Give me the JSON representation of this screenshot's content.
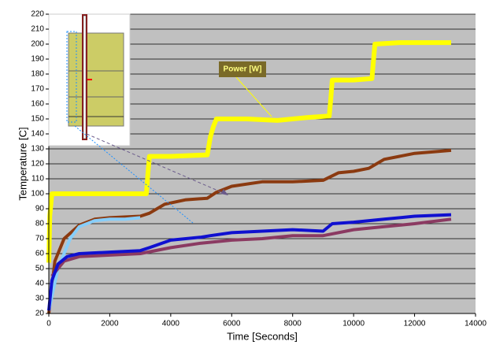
{
  "chart_data": {
    "type": "line",
    "x_label": "Time [Seconds]",
    "y_label": "Temperature [C]",
    "xlim": [
      0,
      14000
    ],
    "xticks": [
      0,
      2000,
      4000,
      6000,
      8000,
      10000,
      12000,
      14000
    ],
    "ylim": [
      20,
      220
    ],
    "yticks": [
      20,
      30,
      40,
      50,
      60,
      70,
      80,
      90,
      100,
      110,
      120,
      130,
      140,
      150,
      160,
      170,
      180,
      190,
      200,
      210,
      220
    ],
    "grid": true,
    "series": [
      {
        "name": "Power [W]",
        "color": "#ffff00",
        "x": [
          0,
          30,
          100,
          1000,
          2000,
          3200,
          3250,
          3300,
          4000,
          5200,
          5300,
          5400,
          5500,
          6500,
          7500,
          8500,
          9200,
          9250,
          9300,
          10000,
          10600,
          10700,
          11500,
          12500,
          13200
        ],
        "values": [
          54,
          85,
          100,
          100,
          100,
          100,
          113,
          125,
          125,
          126,
          138,
          145,
          150,
          150,
          149,
          151,
          152,
          163,
          176,
          176,
          177,
          200,
          201,
          201,
          201
        ]
      },
      {
        "color": "#8b3a10",
        "x": [
          0,
          200,
          500,
          1000,
          1500,
          2000,
          3000,
          3300,
          3800,
          4500,
          5200,
          5500,
          6000,
          7000,
          8000,
          9000,
          9500,
          10000,
          10500,
          11000,
          12000,
          13200
        ],
        "values": [
          20,
          55,
          70,
          79,
          83,
          84,
          85,
          87,
          93,
          96,
          97,
          101,
          105,
          108,
          108,
          109,
          114,
          115,
          117,
          123,
          127,
          129
        ]
      },
      {
        "color": "#87cefa",
        "x": [
          0,
          300,
          700,
          1000,
          1500,
          2000,
          2500,
          3000
        ],
        "values": [
          22,
          50,
          70,
          78,
          82,
          83,
          83,
          84
        ]
      },
      {
        "color": "#8b3a62",
        "x": [
          100,
          500,
          1000,
          2000,
          3000,
          4000,
          5000,
          6000,
          7000,
          8000,
          9000,
          10000,
          11000,
          12000,
          13200
        ],
        "values": [
          45,
          55,
          58,
          59,
          60,
          64,
          67,
          69,
          70,
          72,
          72,
          76,
          78,
          80,
          83
        ]
      },
      {
        "color": "#1010d0",
        "x": [
          0,
          100,
          300,
          600,
          1000,
          2000,
          3000,
          3300,
          4000,
          5000,
          5300,
          6000,
          7000,
          8000,
          9000,
          9300,
          10000,
          11000,
          12000,
          13200
        ],
        "values": [
          22,
          42,
          53,
          58,
          60,
          61,
          62,
          64,
          69,
          71,
          72,
          74,
          75,
          76,
          75,
          80,
          81,
          83,
          85,
          86
        ]
      }
    ]
  }
}
